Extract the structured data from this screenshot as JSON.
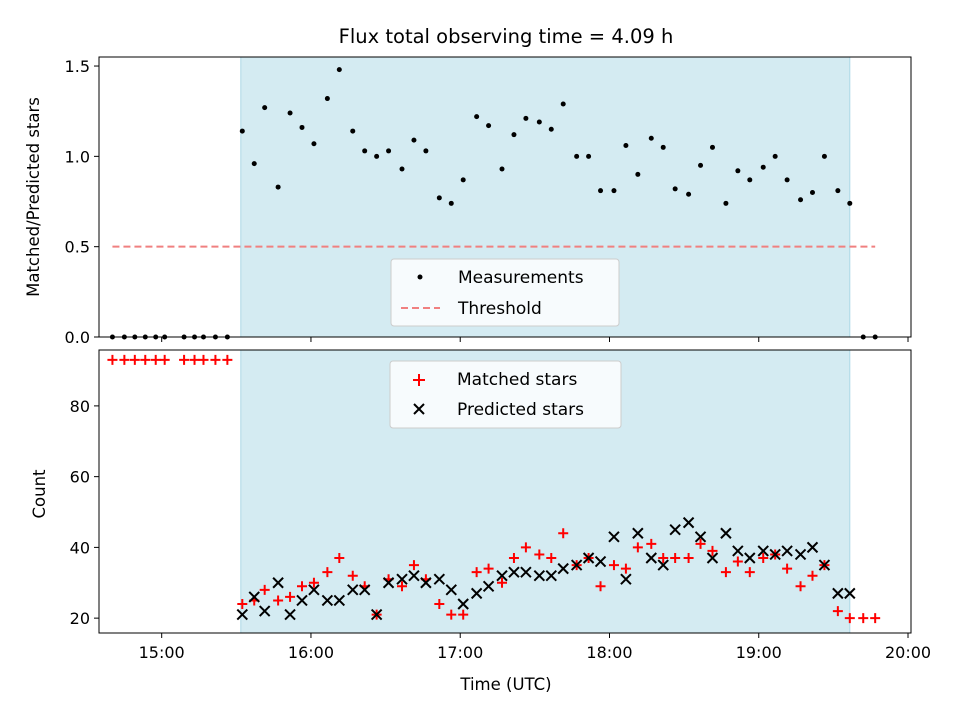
{
  "chart_data": [
    {
      "type": "scatter",
      "title": "Flux total observing time = 4.09 h",
      "ylabel": "Matched/Predicted stars",
      "ylim": [
        0,
        1.55
      ],
      "yticks": [
        0.0,
        0.5,
        1.0,
        1.5
      ],
      "ytick_labels": [
        "0.0",
        "0.5",
        "1.0",
        "1.5"
      ],
      "xlim": [
        14.58,
        20.02
      ],
      "observing_window": [
        15.53,
        19.61
      ],
      "threshold": {
        "name": "Threshold",
        "value": 0.5,
        "x_range": [
          14.67,
          19.78
        ],
        "color": "#f08080"
      },
      "legend": [
        "Measurements",
        "Threshold"
      ],
      "series": [
        {
          "name": "Measurements",
          "x": [
            14.67,
            14.75,
            14.82,
            14.89,
            14.96,
            15.02,
            15.15,
            15.22,
            15.28,
            15.36,
            15.44,
            15.54,
            15.62,
            15.69,
            15.78,
            15.86,
            15.94,
            16.02,
            16.11,
            16.19,
            16.28,
            16.36,
            16.44,
            16.52,
            16.61,
            16.69,
            16.77,
            16.86,
            16.94,
            17.02,
            17.11,
            17.19,
            17.28,
            17.36,
            17.44,
            17.53,
            17.61,
            17.69,
            17.78,
            17.86,
            17.94,
            18.03,
            18.11,
            18.19,
            18.28,
            18.36,
            18.44,
            18.53,
            18.61,
            18.69,
            18.78,
            18.86,
            18.94,
            19.03,
            19.11,
            19.19,
            19.28,
            19.36,
            19.44,
            19.53,
            19.61,
            19.7,
            19.78
          ],
          "y": [
            0,
            0,
            0,
            0,
            0,
            0,
            0,
            0,
            0,
            0,
            0,
            1.14,
            0.96,
            1.27,
            0.83,
            1.24,
            1.16,
            1.07,
            1.32,
            1.48,
            1.14,
            1.03,
            1.0,
            1.03,
            0.93,
            1.09,
            1.03,
            0.77,
            0.74,
            0.87,
            1.22,
            1.17,
            0.93,
            1.12,
            1.21,
            1.19,
            1.15,
            1.29,
            1.0,
            1.0,
            0.81,
            0.81,
            1.06,
            0.9,
            1.1,
            1.05,
            0.82,
            0.79,
            0.95,
            1.05,
            0.74,
            0.92,
            0.87,
            0.94,
            1.0,
            0.87,
            0.76,
            0.8,
            1.0,
            0.81,
            0.74,
            0,
            0
          ]
        }
      ]
    },
    {
      "type": "scatter",
      "xlabel": "Time (UTC)",
      "ylabel": "Count",
      "ylim": [
        15.8,
        95.8
      ],
      "yticks": [
        20,
        40,
        60,
        80
      ],
      "ytick_labels": [
        "20",
        "40",
        "60",
        "80"
      ],
      "xlim": [
        14.58,
        20.02
      ],
      "xticks": [
        15,
        16,
        17,
        18,
        19,
        20
      ],
      "xtick_labels": [
        "15:00",
        "16:00",
        "17:00",
        "18:00",
        "19:00",
        "20:00"
      ],
      "observing_window": [
        15.53,
        19.61
      ],
      "legend": [
        "Matched stars",
        "Predicted stars"
      ],
      "series": [
        {
          "name": "Matched stars",
          "marker": "+",
          "color": "#ff0000",
          "x": [
            14.67,
            14.75,
            14.82,
            14.89,
            14.96,
            15.02,
            15.15,
            15.22,
            15.28,
            15.36,
            15.44,
            15.54,
            15.62,
            15.69,
            15.78,
            15.86,
            15.94,
            16.02,
            16.11,
            16.19,
            16.28,
            16.36,
            16.44,
            16.52,
            16.61,
            16.69,
            16.77,
            16.86,
            16.94,
            17.02,
            17.11,
            17.19,
            17.28,
            17.36,
            17.44,
            17.53,
            17.61,
            17.69,
            17.78,
            17.86,
            17.94,
            18.03,
            18.11,
            18.19,
            18.28,
            18.36,
            18.44,
            18.53,
            18.61,
            18.69,
            18.78,
            18.86,
            18.94,
            19.03,
            19.11,
            19.19,
            19.28,
            19.36,
            19.44,
            19.53,
            19.61,
            19.7,
            19.78
          ],
          "y": [
            93,
            93,
            93,
            93,
            93,
            93,
            93,
            93,
            93,
            93,
            93,
            24,
            25,
            28,
            25,
            26,
            29,
            30,
            33,
            37,
            32,
            29,
            21,
            31,
            29,
            35,
            31,
            24,
            21,
            21,
            33,
            34,
            30,
            37,
            40,
            38,
            37,
            44,
            35,
            37,
            29,
            35,
            34,
            40,
            41,
            37,
            37,
            37,
            41,
            39,
            33,
            36,
            33,
            37,
            38,
            34,
            29,
            32,
            35,
            22,
            20,
            20,
            20
          ]
        },
        {
          "name": "Predicted stars",
          "marker": "x",
          "color": "#000000",
          "x": [
            15.54,
            15.62,
            15.69,
            15.78,
            15.86,
            15.94,
            16.02,
            16.11,
            16.19,
            16.28,
            16.36,
            16.44,
            16.52,
            16.61,
            16.69,
            16.77,
            16.86,
            16.94,
            17.02,
            17.11,
            17.19,
            17.28,
            17.36,
            17.44,
            17.53,
            17.61,
            17.69,
            17.78,
            17.86,
            17.94,
            18.03,
            18.11,
            18.19,
            18.28,
            18.36,
            18.44,
            18.53,
            18.61,
            18.69,
            18.78,
            18.86,
            18.94,
            19.03,
            19.11,
            19.19,
            19.28,
            19.36,
            19.44,
            19.53,
            19.61
          ],
          "y": [
            21,
            26,
            22,
            30,
            21,
            25,
            28,
            25,
            25,
            28,
            28,
            21,
            30,
            31,
            32,
            30,
            31,
            28,
            24,
            27,
            29,
            32,
            33,
            33,
            32,
            32,
            34,
            35,
            37,
            36,
            43,
            31,
            44,
            37,
            35,
            45,
            47,
            43,
            37,
            44,
            39,
            37,
            39,
            38,
            39,
            38,
            40,
            35,
            27,
            27
          ]
        }
      ]
    }
  ]
}
